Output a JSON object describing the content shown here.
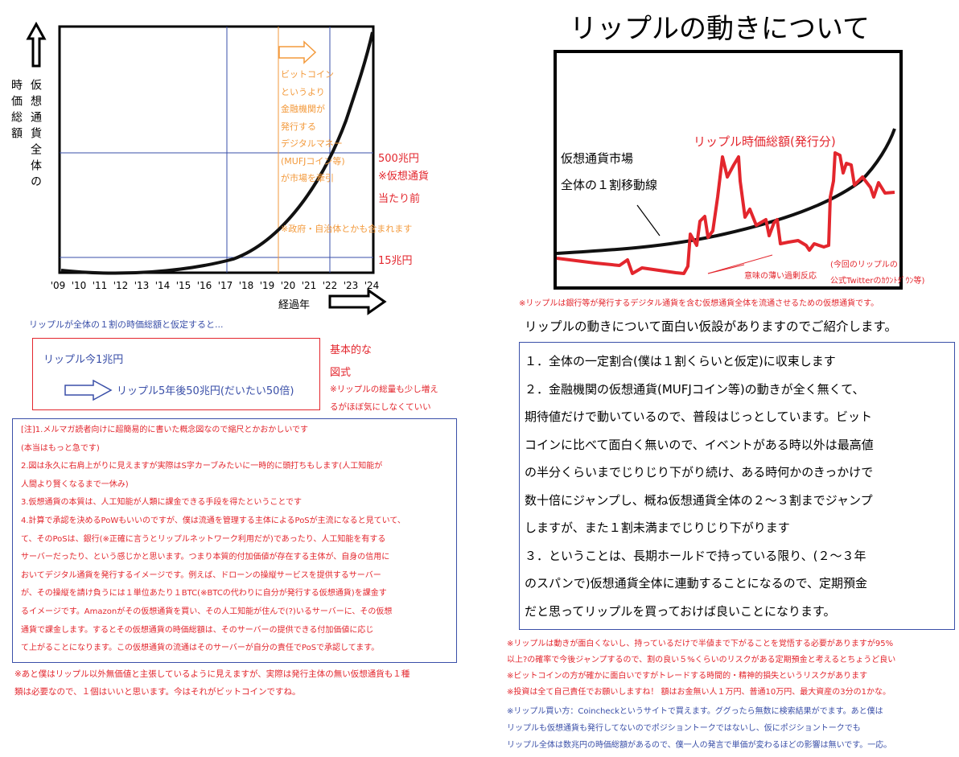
{
  "left_chart": {
    "y_axis_label_col1": "時価総額",
    "y_axis_label_col2": "仮想通貨全体の",
    "x_axis_label": "経過年",
    "x_ticks": [
      "'09",
      "'10",
      "'11",
      "'12",
      "'13",
      "'14",
      "'15",
      "'16",
      "'17",
      "'18",
      "'19",
      "'20",
      "'21",
      "'22",
      "'23",
      "'24"
    ],
    "orange_note": [
      "ビットコイン",
      "というより",
      "金融機関が",
      "発行する",
      "デジタルマネー",
      "(MUFJコイン等)",
      "が市場を牽引"
    ],
    "orange_note2": "※政府・自治体とかも含まれます",
    "label_500": "500兆円",
    "label_500_note1": "※仮想通貨",
    "label_500_note2": "当たり前",
    "label_15": "15兆円"
  },
  "left_text": {
    "assumption": "リップルが全体の１割の時価総額と仮定すると...",
    "ripple_now": "リップル今1兆円",
    "ripple_5y": "リップル5年後50兆円(だいたい50倍)",
    "basic1": "基本的な",
    "basic2": "図式",
    "basic_note1": "※リップルの総量も少し増え",
    "basic_note2": "るがほぼ気にしなくていい",
    "notes": [
      "[注]1.メルマガ読者向けに超簡易的に書いた概念図なので縮尺とかおかしいです",
      "(本当はもっと急です)",
      "2.図は永久に右肩上がりに見えますが実際はS字カーブみたいに一時的に頭打ちもします(人工知能が",
      "人間より賢くなるまで一休み)",
      "3.仮想通貨の本質は、人工知能が人類に課金できる手段を得たということです",
      "4.計算で承認を決めるPoWもいいのですが、僕は流通を管理する主体によるPoSが主流になると見ていて、",
      "て、そのPoSは、銀行(※正確に言うとリップルネットワーク利用だが)であったり、人工知能を有する",
      "サーバーだったり、という感じかと思います。つまり本質的付加価値が存在する主体が、自身の信用に",
      "おいてデジタル通貨を発行するイメージです。例えば、ドローンの操縦サービスを提供するサーバー",
      "が、その操縦を請け負うには１単位あたり１BTC(※BTCの代わりに自分が発行する仮想通貨)を課金す",
      "るイメージです。Amazonがその仮想通貨を買い、その人工知能が住んで(?)いるサーバーに、その仮想",
      "通貨で課金します。するとその仮想通貨の時価総額は、そのサーバーの提供できる付加価値に応じ",
      "て上がることになります。この仮想通貨の流通はそのサーバーが自分の責任でPoSで承認してます。"
    ],
    "footer1": "※あと僕はリップル以外無価値と主張しているように見えますが、実際は発行主体の無い仮想通貨も１種",
    "footer2": "類は必要なので、１個はいいと思います。今はそれがビットコインですね。"
  },
  "right": {
    "title": "リップルの動きについて",
    "market_label1": "仮想通貨市場",
    "market_label2": "全体の１割移動線",
    "ripple_label": "リップル時価総額(発行分)",
    "overreact": "意味の薄い過剰反応",
    "official1": "(今回のリップルの",
    "official2": "公式Twitterのｶｳﾝﾄﾀﾞｳﾝ等)",
    "chart_note": "※リップルは銀行等が発行するデジタル通貨を含む仮想通貨全体を流通させるための仮想通貨です。",
    "intro": "リップルの動きについて面白い仮設がありますのでご紹介します。",
    "main_lines": [
      "１．全体の一定割合(僕は１割くらいと仮定)に収束します",
      "２．金融機関の仮想通貨(MUFJコイン等)の動きが全く無くて、",
      "期待値だけで動いているので、普段はじっとしています。ビット",
      "コインに比べて面白く無いので、イベントがある時以外は最高値",
      "の半分くらいまでじりじり下がり続け、ある時何かのきっかけで",
      "数十倍にジャンプし、概ね仮想通貨全体の２～３割までジャンプ",
      "しますが、また１割未満までじりじり下がります",
      "３．ということは、長期ホールドで持っている限り、(２～３年",
      "のスパンで)仮想通貨全体に連動することになるので、定期預金",
      "だと思ってリップルを買っておけば良いことになります。"
    ],
    "red_notes": [
      "※リップルは動きが面白くないし、持っているだけで半値まで下がることを覚悟する必要がありますが95%",
      "以上?の確率で今後ジャンプするので、割の良い５%くらいのリスクがある定期預金と考えるとちょうど良い",
      "※ビットコインの方が確かに面白いですがトレードする時間的・精神的損失というリスクがあります",
      "※投資は全て自己責任でお願いしますね！ 額はお金無い人１万円、普通10万円、最大資産の3分の1かな。"
    ],
    "blue_notes": [
      "※リップル買い方：Coincheckというサイトで買えます。ググったら無数に検索結果がでます。あと僕は",
      "リップルも仮想通貨も発行してないのでポジショントークではないし、仮にポジショントークでも",
      "リップル全体は数兆円の時価総額があるので、僕一人の発言で単価が変わるほどの影響は無いです。一応。"
    ]
  },
  "colors": {
    "red": "#e3262d",
    "blue": "#3a4fa8",
    "orange": "#f39a3c"
  }
}
